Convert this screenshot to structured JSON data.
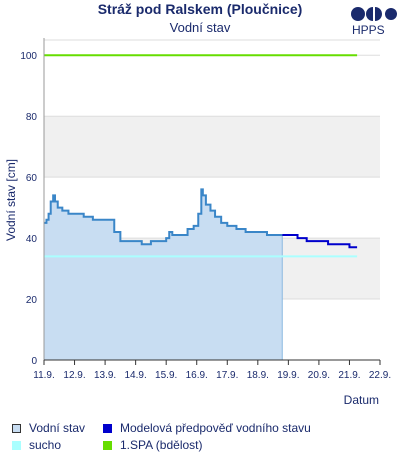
{
  "header": {
    "title": "Stráž pod Ralskem (Ploučnice)",
    "subtitle": "Vodní stav",
    "logo_text": "HPPS"
  },
  "legend": {
    "items": [
      {
        "label": "Vodní stav",
        "color": "#c8ddf2",
        "border": "#333333"
      },
      {
        "label": "Modelová předpověď vodního stavu",
        "color": "#0000cc",
        "border": "#0000cc"
      },
      {
        "label": "sucho",
        "color": "#aaffff",
        "border": "#aaffff"
      },
      {
        "label": "1.SPA (bdělost)",
        "color": "#66dd00",
        "border": "#66dd00"
      }
    ]
  },
  "chart_data": {
    "type": "line",
    "title": "Stráž pod Ralskem (Ploučnice)",
    "subtitle": "Vodní stav",
    "xlabel": "Datum",
    "ylabel": "Vodní stav [cm]",
    "ylim": [
      0,
      105
    ],
    "yticks": [
      0,
      20,
      40,
      60,
      80,
      100
    ],
    "xlim": [
      0,
      11
    ],
    "xticks": [
      {
        "x": 0,
        "label": "11.9."
      },
      {
        "x": 1,
        "label": "12.9."
      },
      {
        "x": 2,
        "label": "13.9."
      },
      {
        "x": 3,
        "label": "14.9."
      },
      {
        "x": 4,
        "label": "15.9."
      },
      {
        "x": 5,
        "label": "16.9."
      },
      {
        "x": 6,
        "label": "17.9."
      },
      {
        "x": 7,
        "label": "18.9."
      },
      {
        "x": 8,
        "label": "19.9."
      },
      {
        "x": 9,
        "label": "20.9."
      },
      {
        "x": 10,
        "label": "21.9."
      },
      {
        "x": 11,
        "label": "22.9."
      }
    ],
    "grid": true,
    "colors": {
      "observed_line": "#3a86c8",
      "observed_fill": "#c8ddf2",
      "forecast": "#0000cc",
      "drought": "#aaffff",
      "spa1": "#66dd00",
      "band": "#f0f0f0"
    },
    "thresholds": [
      {
        "name": "1.SPA (bdělost)",
        "value": 100,
        "x_end": 10.25
      },
      {
        "name": "sucho",
        "value": 34,
        "x_end": 10.25
      }
    ],
    "series": [
      {
        "name": "Vodní stav",
        "x": [
          0,
          0.08,
          0.15,
          0.22,
          0.3,
          0.36,
          0.45,
          0.6,
          0.8,
          1.0,
          1.3,
          1.6,
          1.8,
          2.0,
          2.3,
          2.5,
          2.7,
          3.0,
          3.2,
          3.3,
          3.5,
          3.6,
          3.7,
          4.0,
          4.1,
          4.15,
          4.2,
          4.4,
          4.7,
          4.9,
          5.05,
          5.15,
          5.2,
          5.3,
          5.45,
          5.6,
          5.8,
          6.0,
          6.3,
          6.6,
          6.8,
          7.0,
          7.3,
          7.5,
          7.8
        ],
        "y": [
          45,
          46,
          48,
          52,
          54,
          52,
          50,
          49,
          48,
          48,
          47,
          46,
          46,
          46,
          42,
          39,
          39,
          39,
          38,
          38,
          39,
          39,
          39,
          40,
          42,
          42,
          41,
          41,
          43,
          44,
          48,
          56,
          54,
          51,
          49,
          47,
          45,
          44,
          43,
          42,
          42,
          42,
          41,
          41,
          41
        ]
      },
      {
        "name": "Modelová předpověď vodního stavu",
        "x": [
          7.8,
          8.0,
          8.3,
          8.6,
          9.0,
          9.3,
          9.6,
          10.0,
          10.25
        ],
        "y": [
          41,
          41,
          40,
          39,
          39,
          38,
          38,
          37,
          37
        ]
      }
    ]
  }
}
